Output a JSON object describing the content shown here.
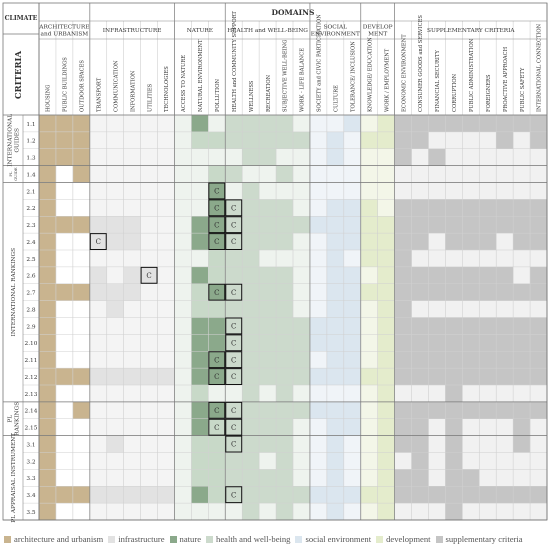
{
  "header": {
    "climate_label": "CLIMATE",
    "domains_label": "DOMAINS",
    "criteria_label": "CRITERIA"
  },
  "colors": {
    "arch": "#c9b48f",
    "infra": "#e2e2e2",
    "nature": "#8ba98b",
    "nature_light": "#c8d9c8",
    "health": "#ccdacc",
    "social": "#dbe6ef",
    "dev": "#e4eccc",
    "supp": "#c5c5c5",
    "grid": "#d0d0d0"
  },
  "domains": [
    {
      "key": "arch",
      "label": [
        "ARCHITECTURE",
        "and URBANISM"
      ],
      "columns": [
        "HOUSING",
        "PUBLIC BUILDINGS",
        "OUTDOOR SPACES"
      ]
    },
    {
      "key": "infra",
      "label": [
        "INFRASTRUCTURE"
      ],
      "columns": [
        "TRANSPORT",
        "COMMUNICATION",
        "INFORMATION",
        "UTILITIES",
        "TECHNOLOGIES"
      ]
    },
    {
      "key": "nature",
      "label": [
        "NATURE"
      ],
      "columns": [
        "ACCESS TO NATURE",
        "NATURAL ENVIRONMENT",
        "POLLUTION"
      ]
    },
    {
      "key": "health",
      "label": [
        "HEALTH and WELL-BEING"
      ],
      "columns": [
        "HEALTH and COMMUNITY SUPPORT",
        "WELLNESS",
        "RECREATION",
        "SUBJECTIVE WELL-BEING",
        "WORK - LIFE BALANCE"
      ]
    },
    {
      "key": "social",
      "label": [
        "SOCIAL",
        "ENVIRONMENT"
      ],
      "columns": [
        "SOCIETY and CIVIC PARTICIPATION",
        "CULTURE",
        "TOLERANCE/ INCLUSION"
      ]
    },
    {
      "key": "dev",
      "label": [
        "DEVELOP",
        "MENT"
      ],
      "columns": [
        "KNOWLEDGE/ EDUCATION",
        "WORK / EMPLOYMENT"
      ]
    },
    {
      "key": "supp",
      "label": [
        "SUPPLEMENTARY CRITERIA"
      ],
      "columns": [
        "ECONOMIC ENVIRONMENT",
        "CONSUMER GOODS and SERVICES",
        "FINANCIAL SECURITY",
        "CORRUPTION",
        "PUBLIC ADMINISTRATION",
        "FOREIGNERS",
        "PROACTIVE APPROACH",
        "PUBLIC SAFETY",
        "INTERNATIONAL CONNECTION"
      ]
    }
  ],
  "groups": [
    {
      "label": [
        "INTERNATIONAL",
        "GUIDES"
      ],
      "rows": [
        "1.1",
        "1.2",
        "1.3"
      ]
    },
    {
      "label": [
        "PL",
        "GUIDE"
      ],
      "rows": [
        "1.4"
      ]
    },
    {
      "label": [
        "INTERNATIONAL RANKINGS"
      ],
      "rows": [
        "2.1",
        "2.2",
        "2.3",
        "2.4",
        "2.5",
        "2.6",
        "2.7",
        "2.8",
        "2.9",
        "2.10",
        "2.11",
        "2.12",
        "2.13"
      ]
    },
    {
      "label": [
        "PL",
        "RANKINGS"
      ],
      "rows": [
        "2.14",
        "2.15"
      ]
    },
    {
      "label": [
        "PL APPRAISAL INSTRUMENT"
      ],
      "rows": [
        "3.1",
        "3.2",
        "3.3",
        "3.4",
        "3.5"
      ]
    }
  ],
  "cell_marker": "C",
  "legend": [
    {
      "key": "arch",
      "label": "architecture and urbanism"
    },
    {
      "key": "infra",
      "label": "infrastructure"
    },
    {
      "key": "nature",
      "label": "nature"
    },
    {
      "key": "health",
      "label": "health and well-being"
    },
    {
      "key": "social",
      "label": "social environment"
    },
    {
      "key": "dev",
      "label": "development"
    },
    {
      "key": "supp",
      "label": "supplementary criteria"
    }
  ]
}
